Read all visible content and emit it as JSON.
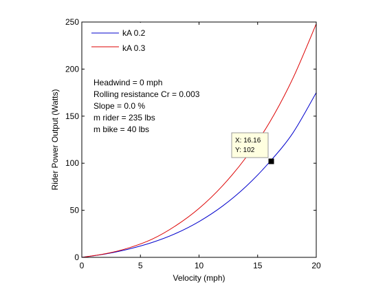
{
  "chart_data": {
    "type": "line",
    "title": "",
    "xlabel": "Velocity (mph)",
    "ylabel": "Rider Power Output (Watts)",
    "xlim": [
      0,
      20
    ],
    "ylim": [
      0,
      250
    ],
    "x_ticks": [
      0,
      5,
      10,
      15,
      20
    ],
    "y_ticks": [
      0,
      50,
      100,
      150,
      200,
      250
    ],
    "grid": false,
    "legend_position": "top-left",
    "series": [
      {
        "name": "kA 0.2",
        "color": "#0000cc",
        "x": [
          0,
          2,
          4,
          6,
          8,
          10,
          12,
          14,
          16,
          18,
          20
        ],
        "y": [
          0,
          3.6,
          8.8,
          15.8,
          25.3,
          38.0,
          54.4,
          75.2,
          101,
          132,
          175
        ]
      },
      {
        "name": "kA 0.3",
        "color": "#dd0000",
        "x": [
          0,
          2,
          4,
          6,
          8,
          10,
          12,
          14,
          16,
          18,
          20
        ],
        "y": [
          0,
          3.8,
          10.0,
          19.3,
          33.5,
          52.0,
          76.0,
          106,
          143,
          190,
          248
        ]
      }
    ],
    "annotations": [
      "Headwind = 0 mph",
      "Rolling resistance Cr = 0.003",
      "Slope = 0.0 %",
      "m rider = 235 lbs",
      "m bike = 40 lbs"
    ],
    "datatip": {
      "x": 16.16,
      "y": 102,
      "label_x": "X: 16.16",
      "label_y": "Y: 102"
    }
  }
}
